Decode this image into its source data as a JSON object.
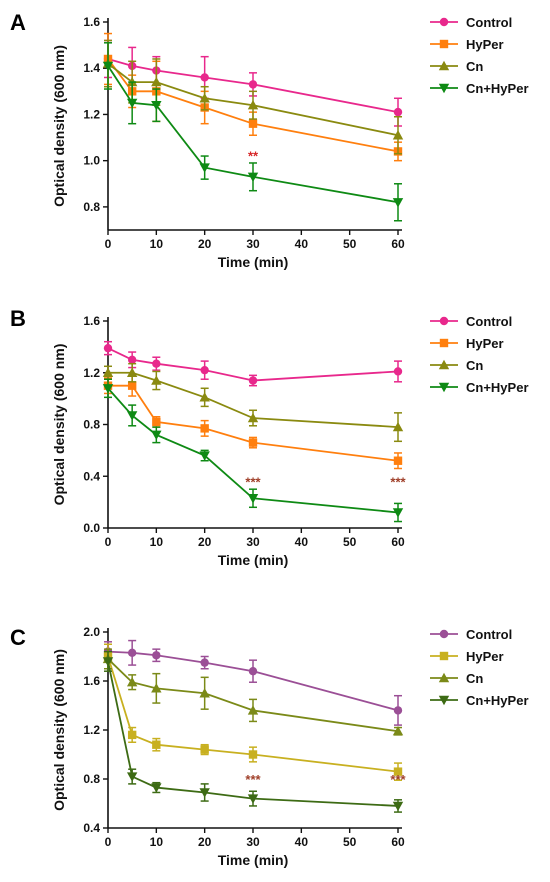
{
  "chart_data": [
    {
      "type": "line",
      "panel_label": "A",
      "xlabel": "Time (min)",
      "ylabel": "Optical density (600 nm)",
      "x": [
        0,
        5,
        10,
        20,
        30,
        60
      ],
      "xticks": [
        "0",
        "10",
        "20",
        "30",
        "40",
        "50",
        "60"
      ],
      "xlim": [
        0,
        60
      ],
      "ylim": [
        0.7,
        1.6
      ],
      "yticks": [
        "0.8",
        "1.0",
        "1.2",
        "1.4",
        "1.6"
      ],
      "ytick_values": [
        0.8,
        1.0,
        1.2,
        1.4,
        1.6
      ],
      "grid": false,
      "legend_position": "top-right",
      "series": [
        {
          "name": "Control",
          "color": "#e8288c",
          "marker": "circle",
          "values": [
            1.44,
            1.41,
            1.39,
            1.36,
            1.33,
            1.21
          ],
          "errors": [
            0.08,
            0.08,
            0.06,
            0.09,
            0.05,
            0.06
          ]
        },
        {
          "name": "HyPer",
          "color": "#ff7f0e",
          "marker": "square",
          "values": [
            1.44,
            1.3,
            1.3,
            1.23,
            1.16,
            1.04
          ],
          "errors": [
            0.11,
            0.07,
            0.13,
            0.07,
            0.05,
            0.04
          ]
        },
        {
          "name": "Cn",
          "color": "#8a8a10",
          "marker": "triangle-up",
          "values": [
            1.42,
            1.34,
            1.34,
            1.27,
            1.24,
            1.11
          ],
          "errors": [
            0.1,
            0.09,
            0.1,
            0.05,
            0.06,
            0.08
          ]
        },
        {
          "name": "Cn+HyPer",
          "color": "#0e8a14",
          "marker": "triangle-down",
          "values": [
            1.41,
            1.25,
            1.24,
            0.97,
            0.93,
            0.82
          ],
          "errors": [
            0.1,
            0.09,
            0.07,
            0.05,
            0.06,
            0.08
          ]
        }
      ],
      "annotations": [
        {
          "text": "**",
          "x": 30,
          "y": 1.0,
          "color": "#d62728"
        }
      ]
    },
    {
      "type": "line",
      "panel_label": "B",
      "xlabel": "Time (min)",
      "ylabel": "Optical density (600 nm)",
      "x": [
        0,
        5,
        10,
        20,
        30,
        60
      ],
      "xticks": [
        "0",
        "10",
        "20",
        "30",
        "40",
        "50",
        "60"
      ],
      "xlim": [
        0,
        60
      ],
      "ylim": [
        0.0,
        1.6
      ],
      "yticks": [
        "0.0",
        "0.4",
        "0.8",
        "1.2",
        "1.6"
      ],
      "ytick_values": [
        0.0,
        0.4,
        0.8,
        1.2,
        1.6
      ],
      "grid": false,
      "legend_position": "top-right",
      "series": [
        {
          "name": "Control",
          "color": "#e8288c",
          "marker": "circle",
          "values": [
            1.39,
            1.3,
            1.27,
            1.22,
            1.14,
            1.21
          ],
          "errors": [
            0.05,
            0.06,
            0.05,
            0.07,
            0.04,
            0.08
          ]
        },
        {
          "name": "HyPer",
          "color": "#ff7f0e",
          "marker": "square",
          "values": [
            1.1,
            1.1,
            0.82,
            0.77,
            0.66,
            0.52
          ],
          "errors": [
            0.06,
            0.08,
            0.04,
            0.06,
            0.04,
            0.06
          ]
        },
        {
          "name": "Cn",
          "color": "#8a8a10",
          "marker": "triangle-up",
          "values": [
            1.2,
            1.2,
            1.14,
            1.01,
            0.85,
            0.78
          ],
          "errors": [
            0.05,
            0.07,
            0.07,
            0.07,
            0.06,
            0.11
          ]
        },
        {
          "name": "Cn+HyPer",
          "color": "#0e8a14",
          "marker": "triangle-down",
          "values": [
            1.08,
            0.87,
            0.72,
            0.56,
            0.23,
            0.12
          ],
          "errors": [
            0.07,
            0.08,
            0.06,
            0.04,
            0.07,
            0.07
          ]
        }
      ],
      "annotations": [
        {
          "text": "***",
          "x": 30,
          "y": 0.32,
          "color": "#a0402a"
        },
        {
          "text": "***",
          "x": 60,
          "y": 0.32,
          "color": "#a0402a"
        }
      ]
    },
    {
      "type": "line",
      "panel_label": "C",
      "xlabel": "Time (min)",
      "ylabel": "Optical density (600 nm)",
      "x": [
        0,
        5,
        10,
        20,
        30,
        60
      ],
      "xticks": [
        "0",
        "10",
        "20",
        "30",
        "40",
        "50",
        "60"
      ],
      "xlim": [
        0,
        60
      ],
      "ylim": [
        0.4,
        2.0
      ],
      "yticks": [
        "0.4",
        "0.8",
        "1.2",
        "1.6",
        "2.0"
      ],
      "ytick_values": [
        0.4,
        0.8,
        1.2,
        1.6,
        2.0
      ],
      "grid": false,
      "legend_position": "top-right",
      "series": [
        {
          "name": "Control",
          "color": "#9b4f96",
          "marker": "circle",
          "values": [
            1.84,
            1.83,
            1.81,
            1.75,
            1.68,
            1.36
          ],
          "errors": [
            0.08,
            0.1,
            0.05,
            0.05,
            0.09,
            0.12
          ]
        },
        {
          "name": "HyPer",
          "color": "#c8b020",
          "marker": "square",
          "values": [
            1.8,
            1.16,
            1.08,
            1.04,
            1.0,
            0.86
          ],
          "errors": [
            0.1,
            0.06,
            0.05,
            0.04,
            0.06,
            0.07
          ]
        },
        {
          "name": "Cn",
          "color": "#7b8a18",
          "marker": "triangle-up",
          "values": [
            1.78,
            1.59,
            1.54,
            1.5,
            1.36,
            1.19
          ],
          "errors": [
            0.08,
            0.06,
            0.12,
            0.13,
            0.09,
            0.03
          ]
        },
        {
          "name": "Cn+HyPer",
          "color": "#3d6b14",
          "marker": "triangle-down",
          "values": [
            1.76,
            0.82,
            0.73,
            0.69,
            0.64,
            0.58
          ],
          "errors": [
            0.08,
            0.06,
            0.04,
            0.07,
            0.06,
            0.05
          ]
        }
      ],
      "annotations": [
        {
          "text": "***",
          "x": 30,
          "y": 0.76,
          "color": "#a0402a"
        },
        {
          "text": "***",
          "x": 60,
          "y": 0.76,
          "color": "#a0402a"
        }
      ]
    }
  ]
}
